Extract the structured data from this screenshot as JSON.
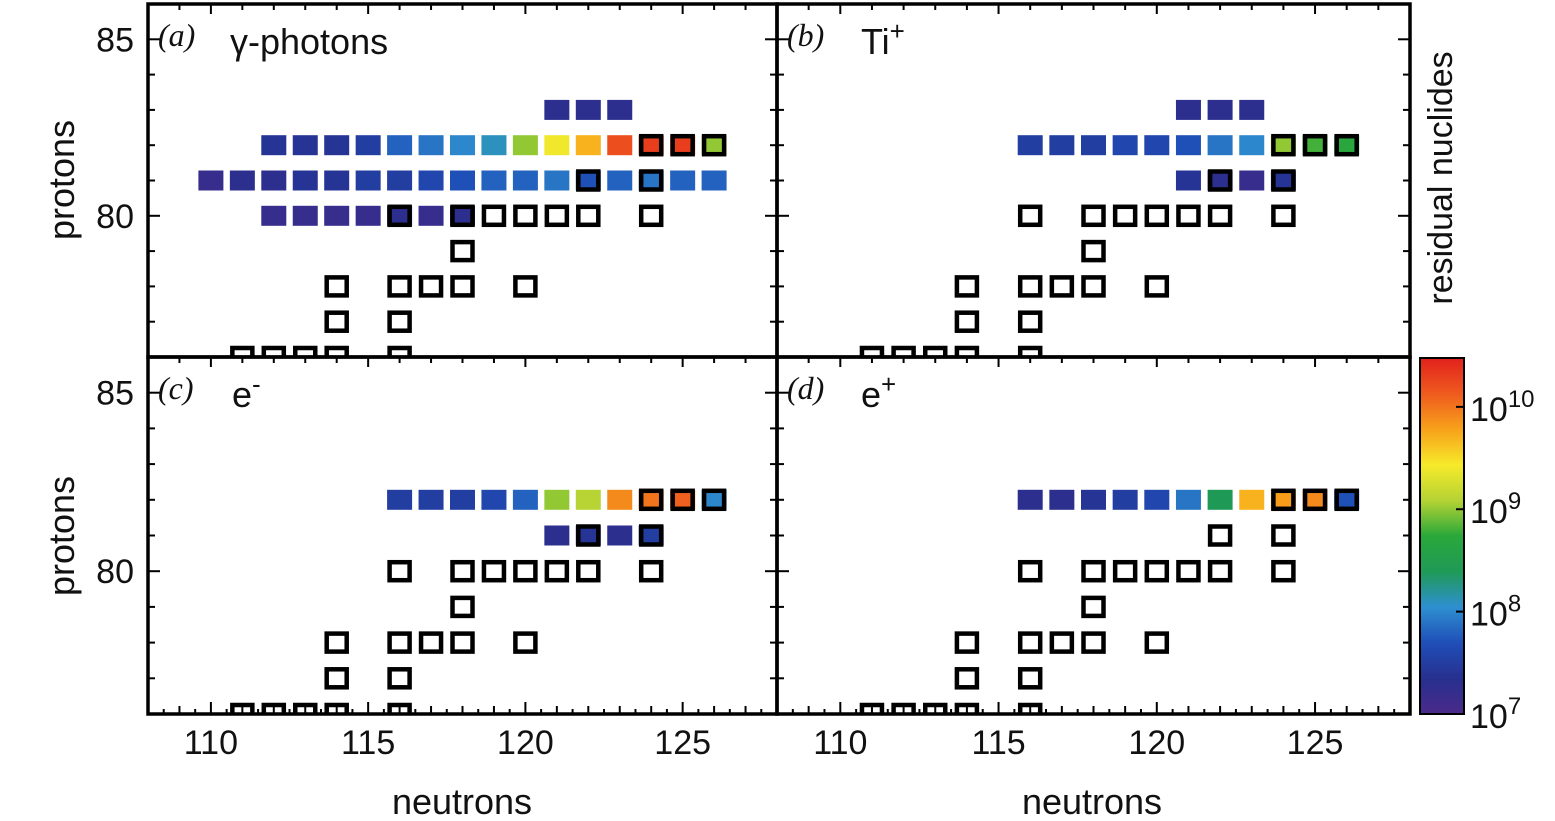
{
  "chart_data": {
    "type": "heatmap",
    "xlabel": "neutrons",
    "ylabel": "protons",
    "xlim": [
      108,
      128
    ],
    "ylim": [
      76,
      86
    ],
    "x_ticks": [
      110,
      115,
      120,
      125
    ],
    "y_ticks": [
      80,
      85
    ],
    "colorbar": {
      "label": "residual nuclides",
      "scale": "log",
      "range": [
        10000000,
        30000000000
      ],
      "ticks": [
        {
          "base": "10",
          "exp": "7",
          "value": 10000000
        },
        {
          "base": "10",
          "exp": "8",
          "value": 100000000
        },
        {
          "base": "10",
          "exp": "9",
          "value": 1000000000
        },
        {
          "base": "10",
          "exp": "10",
          "value": 10000000000
        }
      ],
      "colors": [
        "#4b2a8a",
        "#27308f",
        "#1f4fb8",
        "#2e8fd0",
        "#1f9a57",
        "#2aa83a",
        "#b5d334",
        "#f7ea2a",
        "#f7a11a",
        "#ef5a1f",
        "#e1211c"
      ]
    },
    "stable_isotopes": [
      [
        111,
        76
      ],
      [
        112,
        76
      ],
      [
        113,
        76
      ],
      [
        114,
        76
      ],
      [
        116,
        76
      ],
      [
        114,
        77
      ],
      [
        116,
        77
      ],
      [
        114,
        78
      ],
      [
        116,
        78
      ],
      [
        117,
        78
      ],
      [
        118,
        78
      ],
      [
        120,
        78
      ],
      [
        118,
        79
      ],
      [
        116,
        80
      ],
      [
        118,
        80
      ],
      [
        119,
        80
      ],
      [
        120,
        80
      ],
      [
        121,
        80
      ],
      [
        122,
        80
      ],
      [
        124,
        80
      ],
      [
        122,
        81
      ],
      [
        124,
        81
      ],
      [
        124,
        82
      ],
      [
        125,
        82
      ],
      [
        126,
        82
      ]
    ],
    "panels": [
      {
        "letter": "(a)",
        "projectile_base": "γ-photons",
        "projectile_sup": "",
        "cells": [
          [
            121,
            83,
            7.3
          ],
          [
            122,
            83,
            7.3
          ],
          [
            123,
            83,
            7.3
          ],
          [
            112,
            82,
            7.4
          ],
          [
            113,
            82,
            7.4
          ],
          [
            114,
            82,
            7.4
          ],
          [
            115,
            82,
            7.5
          ],
          [
            116,
            82,
            7.8
          ],
          [
            117,
            82,
            7.9
          ],
          [
            118,
            82,
            8.0
          ],
          [
            119,
            82,
            8.1
          ],
          [
            120,
            82,
            9.0
          ],
          [
            121,
            82,
            9.4
          ],
          [
            122,
            82,
            9.7
          ],
          [
            123,
            82,
            10.2
          ],
          [
            124,
            82,
            10.3
          ],
          [
            125,
            82,
            10.3
          ],
          [
            126,
            82,
            9.0
          ],
          [
            110,
            81,
            7.2
          ],
          [
            111,
            81,
            7.3
          ],
          [
            112,
            81,
            7.3
          ],
          [
            113,
            81,
            7.4
          ],
          [
            114,
            81,
            7.4
          ],
          [
            115,
            81,
            7.5
          ],
          [
            116,
            81,
            7.5
          ],
          [
            117,
            81,
            7.6
          ],
          [
            118,
            81,
            7.7
          ],
          [
            119,
            81,
            7.8
          ],
          [
            120,
            81,
            7.8
          ],
          [
            121,
            81,
            7.9
          ],
          [
            122,
            81,
            7.7
          ],
          [
            123,
            81,
            7.8
          ],
          [
            124,
            81,
            7.9
          ],
          [
            125,
            81,
            7.8
          ],
          [
            126,
            81,
            7.8
          ],
          [
            112,
            80,
            7.2
          ],
          [
            113,
            80,
            7.2
          ],
          [
            114,
            80,
            7.2
          ],
          [
            115,
            80,
            7.2
          ],
          [
            116,
            80,
            7.3
          ],
          [
            117,
            80,
            7.2
          ],
          [
            118,
            80,
            7.3
          ]
        ]
      },
      {
        "letter": "(b)",
        "projectile_base": "Ti",
        "projectile_sup": "+",
        "cells": [
          [
            121,
            83,
            7.3
          ],
          [
            122,
            83,
            7.3
          ],
          [
            123,
            83,
            7.3
          ],
          [
            116,
            82,
            7.5
          ],
          [
            117,
            82,
            7.5
          ],
          [
            118,
            82,
            7.5
          ],
          [
            119,
            82,
            7.6
          ],
          [
            120,
            82,
            7.6
          ],
          [
            121,
            82,
            7.7
          ],
          [
            122,
            82,
            7.9
          ],
          [
            123,
            82,
            8.0
          ],
          [
            124,
            82,
            9.0
          ],
          [
            125,
            82,
            8.8
          ],
          [
            126,
            82,
            8.7
          ],
          [
            121,
            81,
            7.4
          ],
          [
            122,
            81,
            7.3
          ],
          [
            123,
            81,
            7.2
          ],
          [
            124,
            81,
            7.4
          ]
        ]
      },
      {
        "letter": "(c)",
        "projectile_base": "e",
        "projectile_sup": "-",
        "cells": [
          [
            116,
            82,
            7.5
          ],
          [
            117,
            82,
            7.5
          ],
          [
            118,
            82,
            7.5
          ],
          [
            119,
            82,
            7.6
          ],
          [
            120,
            82,
            7.8
          ],
          [
            121,
            82,
            9.0
          ],
          [
            122,
            82,
            9.1
          ],
          [
            123,
            82,
            9.9
          ],
          [
            124,
            82,
            10.0
          ],
          [
            125,
            82,
            10.1
          ],
          [
            126,
            82,
            8.0
          ],
          [
            121,
            81,
            7.3
          ],
          [
            122,
            81,
            7.4
          ],
          [
            123,
            81,
            7.3
          ],
          [
            124,
            81,
            7.5
          ]
        ]
      },
      {
        "letter": "(d)",
        "projectile_base": "e",
        "projectile_sup": "+",
        "cells": [
          [
            116,
            82,
            7.3
          ],
          [
            117,
            82,
            7.3
          ],
          [
            118,
            82,
            7.4
          ],
          [
            119,
            82,
            7.5
          ],
          [
            120,
            82,
            7.6
          ],
          [
            121,
            82,
            7.9
          ],
          [
            122,
            82,
            8.4
          ],
          [
            123,
            82,
            9.7
          ],
          [
            124,
            82,
            9.8
          ],
          [
            125,
            82,
            9.9
          ],
          [
            126,
            82,
            7.7
          ]
        ]
      }
    ]
  }
}
